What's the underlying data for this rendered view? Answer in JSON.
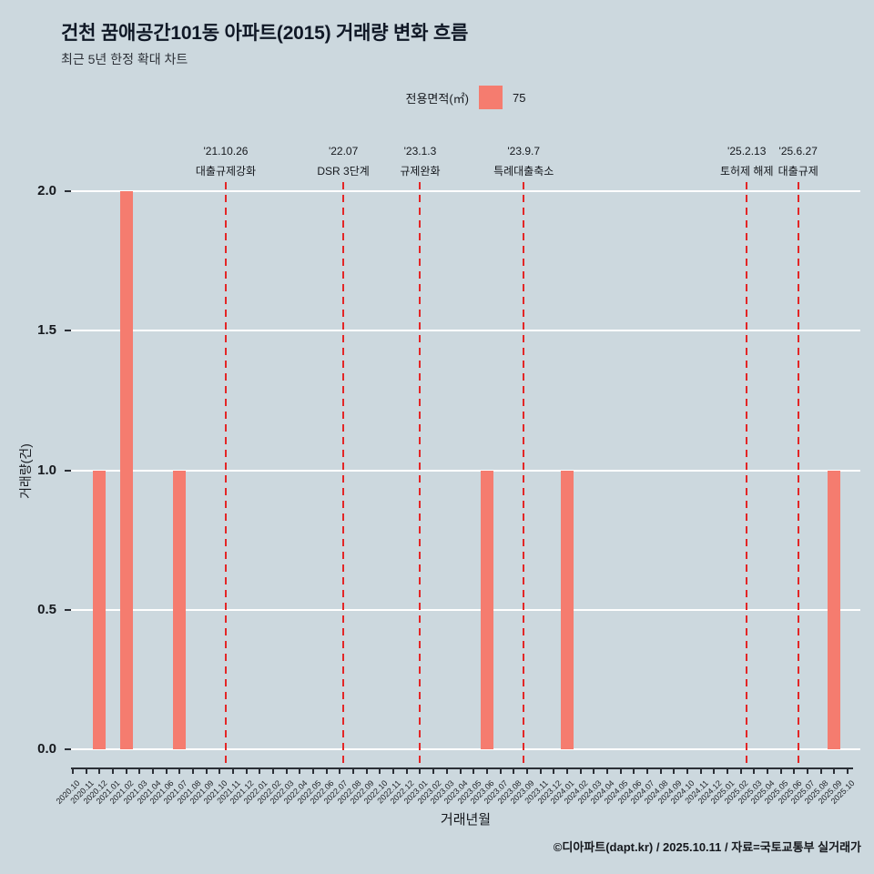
{
  "header": {
    "title": "건천 꿈애공간101동 아파트(2015) 거래량 변화 흐름",
    "subtitle": "최근 5년 한정 확대 차트"
  },
  "legend": {
    "title": "전용면적(㎡)",
    "items": [
      {
        "label": "75",
        "color": "#f57c6f"
      }
    ]
  },
  "chart_data": {
    "type": "bar",
    "title": "건천 꿈애공간101동 아파트(2015) 거래량 변화 흐름",
    "xlabel": "거래년월",
    "ylabel": "거래량(건)",
    "ylim": [
      0,
      2.0
    ],
    "yticks": [
      0.0,
      0.5,
      1.0,
      1.5,
      2.0
    ],
    "grid": true,
    "legend_position": "top-center",
    "categories": [
      "2020.10",
      "2020.11",
      "2020.12",
      "2021.01",
      "2021.02",
      "2021.03",
      "2021.04",
      "2021.06",
      "2021.07",
      "2021.08",
      "2021.09",
      "2021.10",
      "2021.11",
      "2021.12",
      "2022.01",
      "2022.02",
      "2022.03",
      "2022.04",
      "2022.05",
      "2022.06",
      "2022.07",
      "2022.08",
      "2022.09",
      "2022.10",
      "2022.11",
      "2022.12",
      "2023.01",
      "2023.02",
      "2023.03",
      "2023.04",
      "2023.05",
      "2023.06",
      "2023.07",
      "2023.08",
      "2023.09",
      "2023.11",
      "2023.12",
      "2024.01",
      "2024.02",
      "2024.03",
      "2024.04",
      "2024.05",
      "2024.06",
      "2024.07",
      "2024.08",
      "2024.09",
      "2024.10",
      "2024.11",
      "2024.12",
      "2025.01",
      "2025.02",
      "2025.03",
      "2025.04",
      "2025.05",
      "2025.06",
      "2025.07",
      "2025.08",
      "2025.09",
      "2025.10"
    ],
    "values": [
      0,
      0,
      1,
      0,
      2,
      0,
      0,
      0,
      1,
      0,
      0,
      0,
      0,
      0,
      0,
      0,
      0,
      0,
      0,
      0,
      0,
      0,
      0,
      0,
      0,
      0,
      0,
      0,
      0,
      0,
      0,
      1,
      0,
      0,
      0,
      0,
      0,
      1,
      0,
      0,
      0,
      0,
      0,
      0,
      0,
      0,
      0,
      0,
      0,
      0,
      0,
      0,
      0,
      0,
      0,
      0,
      0,
      1,
      0
    ],
    "annotations": [
      {
        "date": "'21.10.26",
        "label": "대출규제강화",
        "x_index": 11.45
      },
      {
        "date": "'22.07",
        "label": "DSR 3단계",
        "x_index": 20.25
      },
      {
        "date": "'23.1.3",
        "label": "규제완화",
        "x_index": 26.0
      },
      {
        "date": "'23.9.7",
        "label": "특례대출축소",
        "x_index": 33.75
      },
      {
        "date": "'25.2.13",
        "label": "토허제 해제",
        "x_index": 50.45
      },
      {
        "date": "'25.6.27",
        "label": "대출규제",
        "x_index": 54.3
      }
    ]
  },
  "colors": {
    "background": "#ccd8de",
    "bar": "#f57c6f",
    "annotation_line": "#e32626",
    "gridline": "#ffffff",
    "title_text": "#101826"
  },
  "footer": {
    "credit": "©디아파트(dapt.kr) / 2025.10.11 / 자료=국토교통부 실거래가"
  }
}
